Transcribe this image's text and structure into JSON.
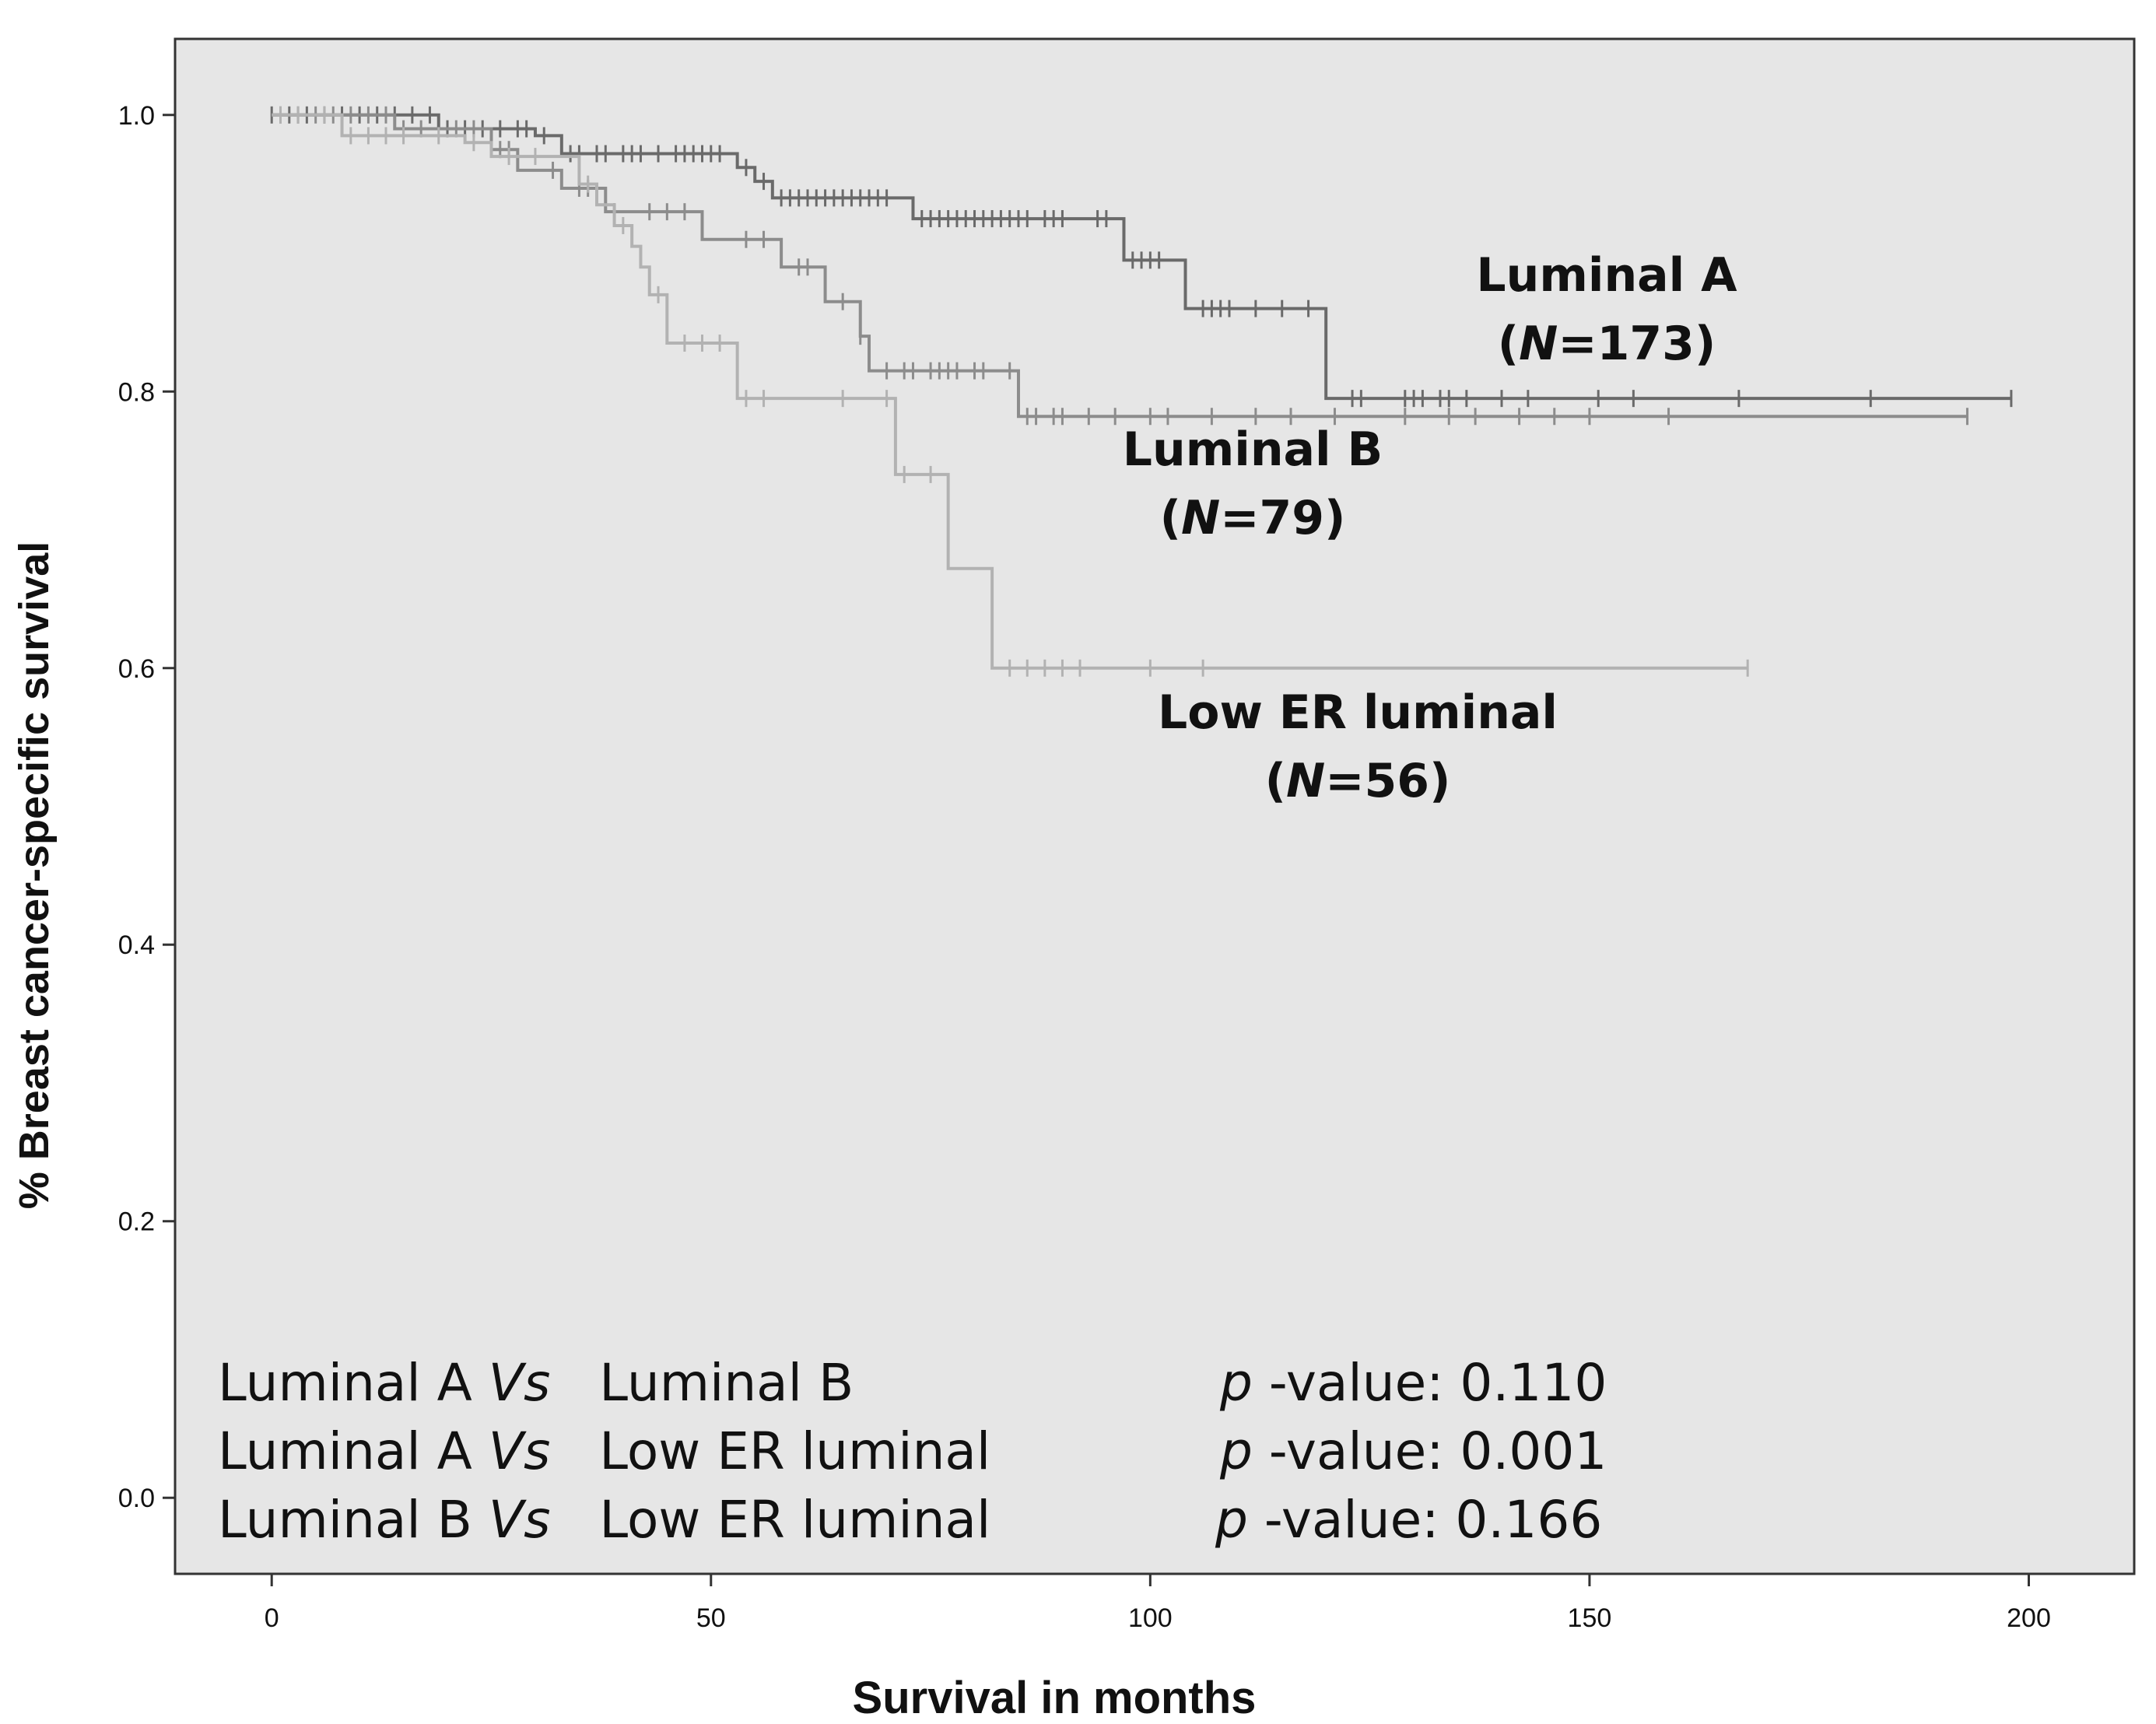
{
  "chart_data": {
    "type": "line",
    "subtype": "kaplan-meier",
    "title": "",
    "xlabel": "Survival in months",
    "ylabel": "% Breast cancer-specific survival",
    "xlim": [
      -11,
      212
    ],
    "ylim": [
      -0.055,
      1.055
    ],
    "x_ticks": [
      0,
      50,
      100,
      150,
      200
    ],
    "y_ticks": [
      0.0,
      0.2,
      0.4,
      0.6,
      0.8,
      1.0
    ],
    "x_tick_labels": [
      "0",
      "50",
      "100",
      "150",
      "200"
    ],
    "y_tick_labels": [
      "0.0",
      "0.2",
      "0.4",
      "0.6",
      "0.8",
      "1.0"
    ],
    "grid": false,
    "background": "#e6e6e6",
    "series": [
      {
        "name": "Luminal A",
        "n_label": "(N=173)",
        "color": "#6a6a6a",
        "steps": [
          [
            0,
            1.0
          ],
          [
            19,
            0.99
          ],
          [
            30,
            0.985
          ],
          [
            33,
            0.972
          ],
          [
            53,
            0.962
          ],
          [
            55,
            0.952
          ],
          [
            57,
            0.94
          ],
          [
            73,
            0.925
          ],
          [
            97,
            0.895
          ],
          [
            104,
            0.86
          ],
          [
            120,
            0.795
          ],
          [
            198,
            0.795
          ]
        ],
        "censored": [
          0,
          2,
          4,
          6,
          8,
          10,
          12,
          14,
          16,
          18,
          20,
          22,
          24,
          26,
          28,
          29,
          31,
          34,
          35,
          37,
          38,
          40,
          41,
          42,
          44,
          46,
          47,
          48,
          49,
          50,
          51,
          54,
          56,
          58,
          59,
          60,
          61,
          62,
          63,
          64,
          65,
          66,
          67,
          68,
          69,
          70,
          74,
          75,
          76,
          77,
          78,
          79,
          80,
          81,
          82,
          83,
          84,
          85,
          86,
          88,
          89,
          90,
          94,
          95,
          98,
          99,
          100,
          101,
          106,
          107,
          108,
          109,
          112,
          115,
          118,
          123,
          124,
          129,
          130,
          131,
          133,
          134,
          136,
          140,
          143,
          151,
          155,
          167,
          182,
          198
        ]
      },
      {
        "name": "Luminal B",
        "n_label": "(N=79)",
        "color": "#8c8c8c",
        "steps": [
          [
            0,
            1.0
          ],
          [
            14,
            0.99
          ],
          [
            25,
            0.975
          ],
          [
            28,
            0.96
          ],
          [
            33,
            0.947
          ],
          [
            38,
            0.93
          ],
          [
            49,
            0.91
          ],
          [
            58,
            0.89
          ],
          [
            63,
            0.865
          ],
          [
            67,
            0.84
          ],
          [
            68,
            0.815
          ],
          [
            85,
            0.782
          ],
          [
            193,
            0.782
          ]
        ],
        "censored": [
          1,
          3,
          5,
          7,
          9,
          11,
          13,
          15,
          17,
          21,
          23,
          26,
          27,
          32,
          35,
          36,
          39,
          43,
          45,
          47,
          54,
          56,
          60,
          61,
          65,
          67,
          70,
          72,
          73,
          75,
          76,
          77,
          78,
          80,
          81,
          84,
          86,
          87,
          89,
          90,
          93,
          96,
          100,
          102,
          107,
          112,
          116,
          121,
          129,
          134,
          137,
          142,
          146,
          150,
          159,
          193
        ]
      },
      {
        "name": "Low ER luminal",
        "n_label": "(N=56)",
        "color": "#b2b2b2",
        "steps": [
          [
            0,
            1.0
          ],
          [
            8,
            0.985
          ],
          [
            22,
            0.98
          ],
          [
            25,
            0.97
          ],
          [
            35,
            0.95
          ],
          [
            37,
            0.935
          ],
          [
            39,
            0.92
          ],
          [
            41,
            0.905
          ],
          [
            42,
            0.89
          ],
          [
            43,
            0.87
          ],
          [
            45,
            0.835
          ],
          [
            53,
            0.795
          ],
          [
            71,
            0.74
          ],
          [
            77,
            0.672
          ],
          [
            82,
            0.6
          ],
          [
            168,
            0.6
          ]
        ],
        "censored": [
          1,
          3,
          6,
          9,
          11,
          13,
          15,
          19,
          23,
          27,
          30,
          36,
          40,
          44,
          47,
          49,
          51,
          54,
          56,
          65,
          70,
          72,
          75,
          84,
          86,
          88,
          90,
          92,
          100,
          106,
          168
        ]
      }
    ],
    "annotations": [
      {
        "text": "Luminal A Vs   Luminal B",
        "p_label": "p -value: 0.110"
      },
      {
        "text": "Luminal A Vs   Low ER luminal",
        "p_label": "p -value: 0.001"
      },
      {
        "text": "Luminal B Vs   Low ER luminal",
        "p_label": "p -value: 0.166"
      }
    ]
  }
}
